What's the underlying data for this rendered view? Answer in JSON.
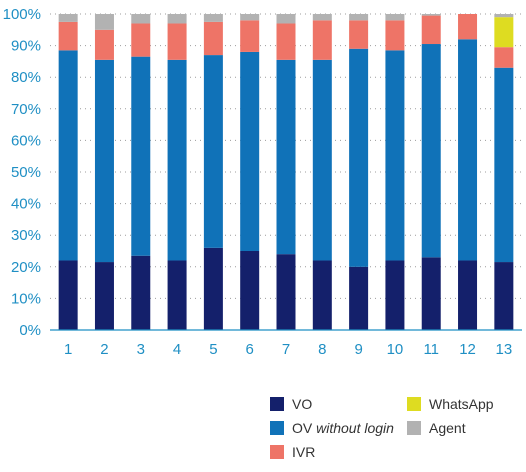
{
  "chart_data": {
    "type": "bar",
    "stacked": true,
    "normalized_percent": true,
    "categories": [
      "1",
      "2",
      "3",
      "4",
      "5",
      "6",
      "7",
      "8",
      "9",
      "10",
      "11",
      "12",
      "13"
    ],
    "y_tick_labels": [
      "0%",
      "10%",
      "20%",
      "30%",
      "40%",
      "50%",
      "60%",
      "70%",
      "80%",
      "90%",
      "100%"
    ],
    "ylim": [
      0,
      100
    ],
    "grid": "horizontal dotted",
    "legend_position": "bottom-right",
    "series": [
      {
        "name": "VO",
        "color": "#14206b",
        "values": [
          22,
          21.5,
          23.5,
          22,
          26,
          25,
          24,
          22,
          20,
          22,
          23,
          22,
          21.5
        ]
      },
      {
        "name": "OV without login",
        "color": "#1072b8",
        "values": [
          66.5,
          64,
          63,
          63.5,
          61,
          63,
          61.5,
          63.5,
          69,
          66.5,
          67.5,
          70,
          61.5
        ]
      },
      {
        "name": "IVR",
        "color": "#ee7467",
        "values": [
          9,
          9.5,
          10.5,
          11.5,
          10.5,
          10,
          11.5,
          12.5,
          9,
          9.5,
          9,
          8,
          6.5
        ]
      },
      {
        "name": "WhatsApp",
        "color": "#dedc21",
        "values": [
          0,
          0,
          0,
          0,
          0,
          0,
          0,
          0,
          0,
          0,
          0,
          0,
          9.5
        ]
      },
      {
        "name": "Agent",
        "color": "#b2b2b2",
        "values": [
          2.5,
          5,
          3,
          3,
          2.5,
          2,
          3,
          2,
          2,
          2,
          0.5,
          0,
          1
        ]
      }
    ],
    "legend": {
      "columns": [
        [
          {
            "label": "VO",
            "series": 0
          },
          {
            "label": "OV ",
            "italic": "without login",
            "series": 1
          },
          {
            "label": "IVR",
            "series": 2
          }
        ],
        [
          {
            "label": "WhatsApp",
            "series": 3
          },
          {
            "label": "Agent",
            "series": 4
          }
        ]
      ]
    }
  }
}
